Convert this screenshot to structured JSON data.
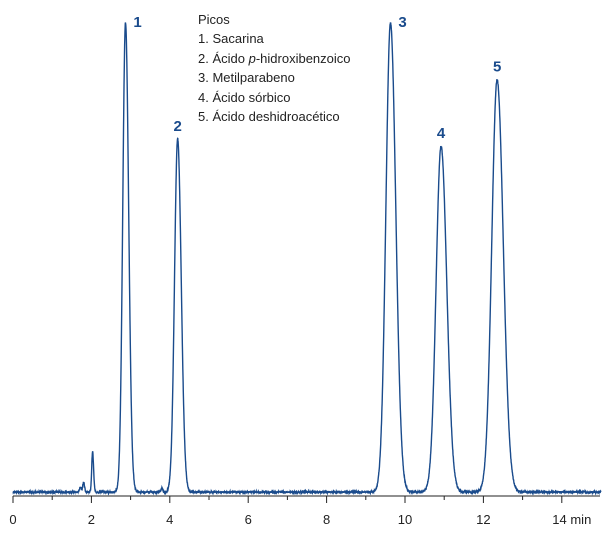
{
  "chart_data": {
    "type": "line",
    "title": "",
    "xlabel": "",
    "ylabel": "",
    "x_unit": "min",
    "xlim": [
      0,
      15
    ],
    "x_ticks": [
      0,
      2,
      4,
      6,
      8,
      10,
      12,
      14
    ],
    "ylim": [
      0,
      1.0
    ],
    "grid": false,
    "line_color": "#1a4b8c",
    "legend": {
      "title": "Picos",
      "placement": "top-center",
      "entries": [
        {
          "num": "1.",
          "pre": "Sacarina",
          "italic": "",
          "post": ""
        },
        {
          "num": "2.",
          "pre": "Ácido ",
          "italic": "p",
          "post": "-hidroxibenzoico"
        },
        {
          "num": "3.",
          "pre": "Metilparabeno",
          "italic": "",
          "post": ""
        },
        {
          "num": "4.",
          "pre": "Ácido sórbico",
          "italic": "",
          "post": ""
        },
        {
          "num": "5.",
          "pre": "Ácido deshidroacético",
          "italic": "",
          "post": ""
        }
      ]
    },
    "peaks": [
      {
        "label": "1",
        "rt": 2.87,
        "height": 0.99
      },
      {
        "label": "2",
        "rt": 4.2,
        "height": 0.745
      },
      {
        "label": "3",
        "rt": 9.63,
        "height": 0.99
      },
      {
        "label": "4",
        "rt": 10.92,
        "height": 0.73
      },
      {
        "label": "5",
        "rt": 12.35,
        "height": 0.87
      }
    ],
    "minor_peaks": [
      {
        "rt": 1.72,
        "height": 0.01
      },
      {
        "rt": 1.8,
        "height": 0.02
      },
      {
        "rt": 2.03,
        "height": 0.085
      },
      {
        "rt": 3.8,
        "height": 0.008
      }
    ]
  }
}
